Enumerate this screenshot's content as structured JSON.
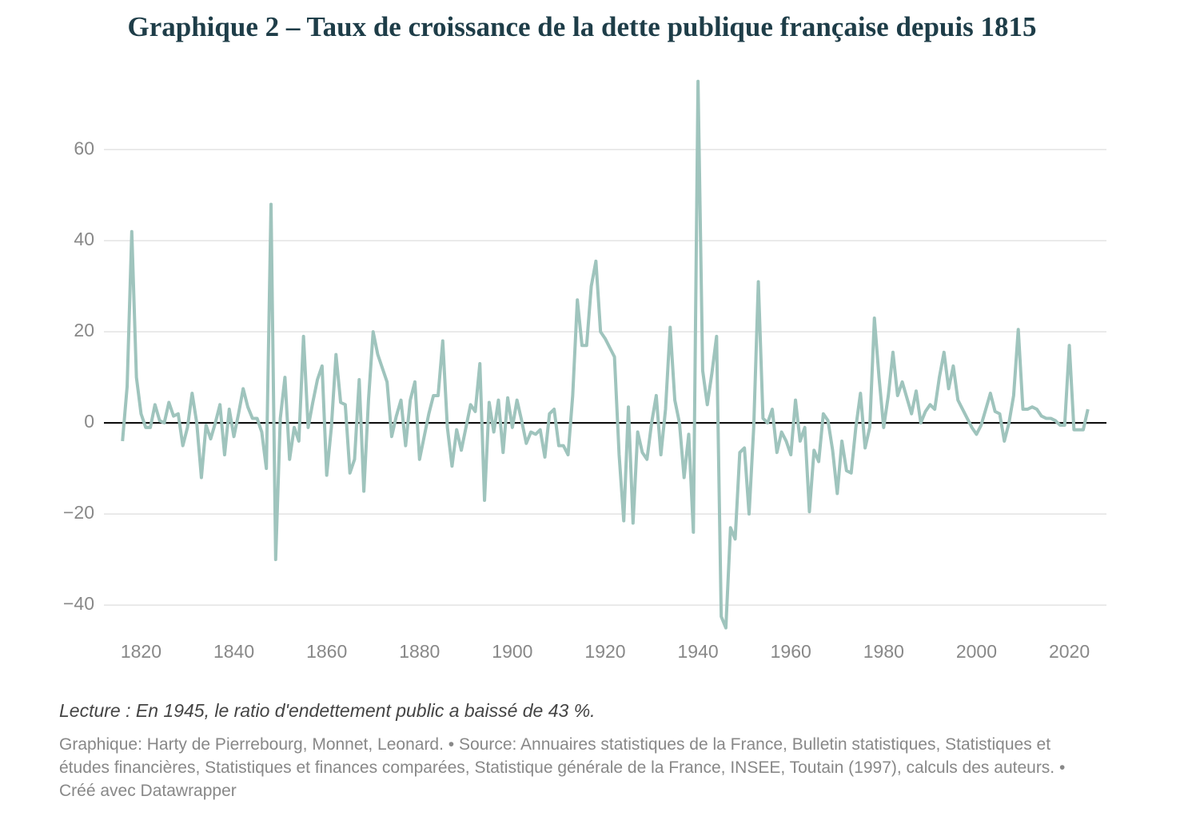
{
  "chart_data": {
    "type": "line",
    "title": "Graphique 2 – Taux de croissance de la dette publique française depuis 1815",
    "annotation": "Lecture : En 1945, le ratio d'endettement public a baissé de 43 %.",
    "source": "Graphique: Harty de Pierrebourg, Monnet, Leonard. • Source: Annuaires statistiques de la France, Bulletin statistiques, Statistiques et études financières, Statistiques et finances comparées, Statistique générale de la France, INSEE, Toutain (1997), calculs des auteurs. • Créé avec Datawrapper",
    "x": [
      1816,
      1817,
      1818,
      1819,
      1820,
      1821,
      1822,
      1823,
      1824,
      1825,
      1826,
      1827,
      1828,
      1829,
      1830,
      1831,
      1832,
      1833,
      1834,
      1835,
      1836,
      1837,
      1838,
      1839,
      1840,
      1841,
      1842,
      1843,
      1844,
      1845,
      1846,
      1847,
      1848,
      1849,
      1850,
      1851,
      1852,
      1853,
      1854,
      1855,
      1856,
      1857,
      1858,
      1859,
      1860,
      1861,
      1862,
      1863,
      1864,
      1865,
      1866,
      1867,
      1868,
      1869,
      1870,
      1871,
      1872,
      1873,
      1874,
      1875,
      1876,
      1877,
      1878,
      1879,
      1880,
      1881,
      1882,
      1883,
      1884,
      1885,
      1886,
      1887,
      1888,
      1889,
      1890,
      1891,
      1892,
      1893,
      1894,
      1895,
      1896,
      1897,
      1898,
      1899,
      1900,
      1901,
      1902,
      1903,
      1904,
      1905,
      1906,
      1907,
      1908,
      1909,
      1910,
      1911,
      1912,
      1913,
      1914,
      1915,
      1916,
      1917,
      1918,
      1919,
      1920,
      1921,
      1922,
      1923,
      1924,
      1925,
      1926,
      1927,
      1928,
      1929,
      1930,
      1931,
      1932,
      1933,
      1934,
      1935,
      1936,
      1937,
      1938,
      1939,
      1940,
      1941,
      1942,
      1943,
      1944,
      1945,
      1946,
      1947,
      1948,
      1949,
      1950,
      1951,
      1952,
      1953,
      1954,
      1955,
      1956,
      1957,
      1958,
      1959,
      1960,
      1961,
      1962,
      1963,
      1964,
      1965,
      1966,
      1967,
      1968,
      1969,
      1970,
      1971,
      1972,
      1973,
      1974,
      1975,
      1976,
      1977,
      1978,
      1979,
      1980,
      1981,
      1982,
      1983,
      1984,
      1985,
      1986,
      1987,
      1988,
      1989,
      1990,
      1991,
      1992,
      1993,
      1994,
      1995,
      1996,
      1997,
      1998,
      1999,
      2000,
      2001,
      2002,
      2003,
      2004,
      2005,
      2006,
      2007,
      2008,
      2009,
      2010,
      2011,
      2012,
      2013,
      2014,
      2015,
      2016,
      2017,
      2018,
      2019,
      2020,
      2021,
      2022,
      2023,
      2024
    ],
    "values": [
      -4,
      8,
      42,
      10,
      2,
      -1,
      -1,
      4,
      0.5,
      0,
      4.5,
      1.5,
      2,
      -5,
      -1,
      6.5,
      0,
      -12,
      -0.5,
      -3.5,
      0,
      4,
      -7,
      3,
      -3,
      2,
      7.5,
      3.5,
      1,
      1,
      -2,
      -10,
      48,
      -30,
      1,
      10,
      -8,
      -1,
      -4,
      19,
      -1,
      4.5,
      9.5,
      12.5,
      -11.5,
      -1,
      15,
      4.5,
      4,
      -11,
      -8,
      9.5,
      -15,
      5,
      20,
      15,
      12,
      9,
      -3,
      1.5,
      5,
      -5,
      5,
      9,
      -8,
      -3,
      2,
      6,
      6,
      18,
      -1,
      -9.5,
      -1.5,
      -6,
      -1,
      4,
      2.5,
      13,
      -17,
      4.5,
      -2,
      5,
      -6.5,
      5.5,
      -1,
      5,
      0.5,
      -4.5,
      -2,
      -2.5,
      -1.5,
      -7.5,
      2,
      3,
      -5,
      -5,
      -7,
      6,
      27,
      17,
      17,
      30,
      35.5,
      20,
      18.5,
      16.5,
      14.5,
      -7,
      -21.5,
      3.5,
      -22,
      -2,
      -6.5,
      -8,
      0,
      6,
      -7,
      3,
      21,
      5,
      0,
      -12,
      -2.5,
      -24,
      75,
      11.5,
      4,
      11,
      19,
      -42.5,
      -45,
      -23,
      -25.5,
      -6.5,
      -5.5,
      -20,
      -1,
      31,
      1,
      0,
      3,
      -6.5,
      -2,
      -4,
      -7,
      5,
      -4,
      -1,
      -19.5,
      -6,
      -8.5,
      2,
      0.5,
      -6,
      -15.5,
      -4,
      -10.5,
      -11,
      -1,
      6.5,
      -5.5,
      -1,
      23,
      10,
      -1,
      6,
      15.5,
      6,
      9,
      5.5,
      2,
      7,
      0,
      2.5,
      4,
      3,
      10,
      15.5,
      7.5,
      12.5,
      5,
      3,
      1,
      -1,
      -2.5,
      -0.5,
      3,
      6.5,
      2.5,
      2,
      -4,
      0,
      6,
      20.5,
      3,
      3,
      3.5,
      3,
      1.5,
      1,
      1,
      0.5,
      -0.5,
      -0.5,
      17,
      -1.5,
      -1.5,
      -1.5,
      3
    ],
    "color": "#9fc4bd",
    "xlim": [
      1812,
      2028
    ],
    "xticks": [
      1820,
      1840,
      1860,
      1880,
      1900,
      1920,
      1940,
      1960,
      1980,
      2000,
      2020
    ],
    "ylim": [
      -47,
      76
    ],
    "yticks": [
      {
        "value": -40,
        "label": "−40"
      },
      {
        "value": -20,
        "label": "−20"
      },
      0,
      20,
      40,
      60
    ],
    "grid": true
  }
}
